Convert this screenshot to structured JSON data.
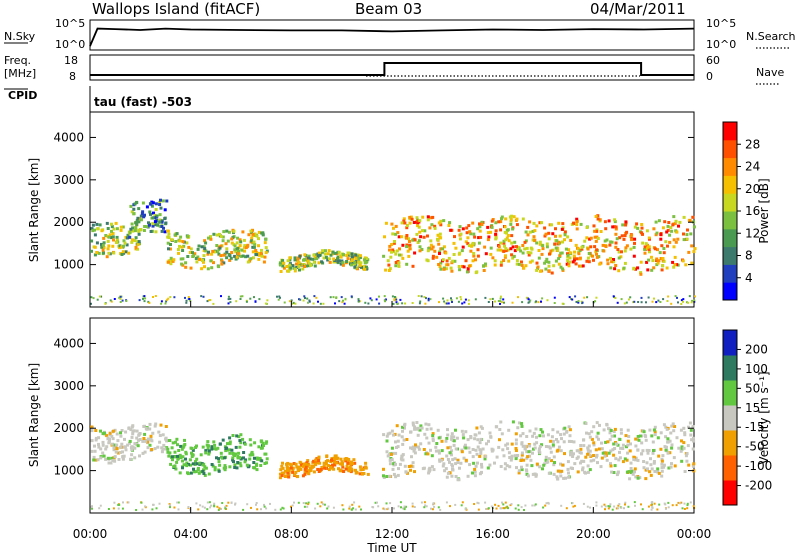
{
  "header": {
    "title": "Wallops Island (fitACF)",
    "beam": "Beam 03",
    "date": "04/Mar/2011"
  },
  "panels": {
    "nsky": {
      "label": "N.Sky",
      "left_ticks": [
        "10^5",
        "10^0"
      ],
      "right_ticks": [
        "10^5",
        "10^0"
      ],
      "right_label": "N.Search"
    },
    "freq": {
      "label_line1": "Freq.",
      "label_line2": "[MHz]",
      "left_ticks": [
        "18",
        "8"
      ],
      "right_ticks": [
        "60",
        "0"
      ],
      "right_label": "Nave",
      "cpid_label": "CPID"
    },
    "cpid": {
      "text": "tau (fast) -503"
    }
  },
  "colorbars": {
    "power": {
      "label": "Power [dB]",
      "ticks": [
        "28",
        "24",
        "20",
        "16",
        "12",
        "8",
        "4"
      ],
      "colors": [
        "#0000ff",
        "#1f3fbf",
        "#3d7a6e",
        "#4a9a52",
        "#7cc040",
        "#c8d820",
        "#f5c000",
        "#ff8c00",
        "#ff5000",
        "#ff0000"
      ]
    },
    "velocity": {
      "label": "Velocity [m s⁻¹]",
      "ticks": [
        "200",
        "100",
        "50",
        "15",
        "-15",
        "-50",
        "-100",
        "-200"
      ],
      "colors": [
        "#1020c0",
        "#2e7a60",
        "#62c840",
        "#c8c8c0",
        "#f0a000",
        "#ff6000",
        "#ff0000"
      ]
    }
  },
  "chart_data": [
    {
      "type": "line",
      "name": "Sky noise / search noise",
      "ylabel": "N.Sky",
      "y_ticks_left": [
        "10^5",
        "10^0"
      ],
      "y_ticks_right": [
        "10^5",
        "10^0"
      ],
      "ylabel_right": "N.Search",
      "x_hours": [
        0,
        0.3,
        1,
        2,
        3,
        4,
        6,
        8,
        10,
        12,
        14,
        16,
        18,
        20,
        22,
        24
      ],
      "y_log": [
        0.2,
        4.0,
        3.9,
        3.7,
        4.0,
        3.8,
        3.7,
        3.6,
        3.6,
        3.4,
        3.6,
        3.8,
        3.7,
        3.9,
        3.8,
        4.0
      ]
    },
    {
      "type": "line",
      "name": "Frequency / Nave",
      "ylabel": "Freq. [MHz]",
      "ylim": [
        8,
        18
      ],
      "y_ticks_left": [
        "18",
        "8"
      ],
      "y_ticks_right": [
        "60",
        "0"
      ],
      "ylabel_right": "Nave",
      "steps": [
        [
          0,
          8
        ],
        [
          11.7,
          8
        ],
        [
          11.7,
          18
        ],
        [
          21.9,
          18
        ],
        [
          21.9,
          8
        ],
        [
          24,
          8
        ]
      ]
    },
    {
      "type": "heatmap",
      "name": "Power",
      "ylabel": "Slant Range [km]",
      "ylim": [
        0,
        4600
      ],
      "y_ticks": [
        1000,
        2000,
        3000,
        4000
      ],
      "xlim_hours": [
        0,
        24
      ],
      "colorbar_label": "Power [dB]",
      "echo_regions": [
        {
          "x_hours": [
            0,
            2.0
          ],
          "range_km": [
            1300,
            2100
          ],
          "power_db": 14
        },
        {
          "x_hours": [
            1.5,
            3.0
          ],
          "range_km": [
            1700,
            2500
          ],
          "power_db": 10
        },
        {
          "x_hours": [
            3.0,
            7.0
          ],
          "range_km": [
            1000,
            1800
          ],
          "power_db": 16
        },
        {
          "x_hours": [
            7.5,
            11.0
          ],
          "range_km": [
            950,
            1300
          ],
          "power_db": 14
        },
        {
          "x_hours": [
            11.6,
            24
          ],
          "range_km": [
            900,
            2100
          ],
          "power_db": 20
        }
      ]
    },
    {
      "type": "heatmap",
      "name": "Velocity",
      "ylabel": "Slant Range [km]",
      "ylim": [
        0,
        4600
      ],
      "y_ticks": [
        1000,
        2000,
        3000,
        4000
      ],
      "xlim_hours": [
        0,
        24
      ],
      "x_ticks": [
        "00:00",
        "04:00",
        "08:00",
        "12:00",
        "16:00",
        "20:00",
        "00:00"
      ],
      "xlabel": "Time UT",
      "colorbar_label": "Velocity [m s⁻¹]",
      "echo_regions": [
        {
          "x_hours": [
            0,
            3.0
          ],
          "range_km": [
            1300,
            2100
          ],
          "velocity_ms": 0
        },
        {
          "x_hours": [
            3.0,
            7.0
          ],
          "range_km": [
            1000,
            1800
          ],
          "velocity_ms": 40
        },
        {
          "x_hours": [
            7.5,
            11.0
          ],
          "range_km": [
            950,
            1300
          ],
          "velocity_ms": -40
        },
        {
          "x_hours": [
            11.6,
            24
          ],
          "range_km": [
            900,
            2100
          ],
          "velocity_ms": 0
        }
      ]
    }
  ]
}
